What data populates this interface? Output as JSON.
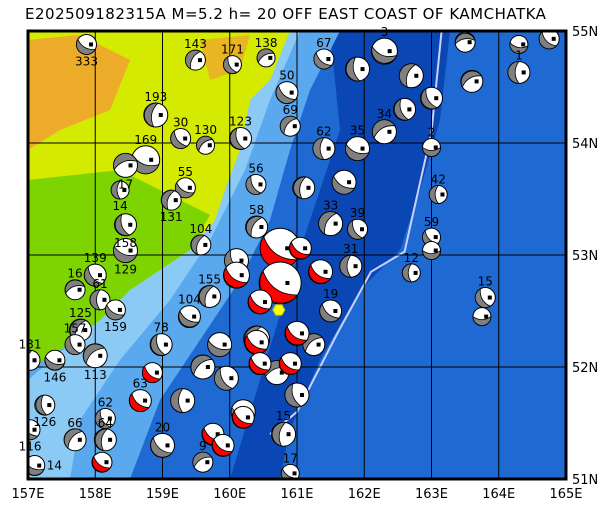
{
  "title": "E202509182315A M=5.2 h= 20 OFF EAST COAST OF KAMCHATKA",
  "map": {
    "lon_range": [
      157,
      165
    ],
    "lat_range": [
      51,
      55
    ],
    "lon_ticks": [
      "157E",
      "158E",
      "159E",
      "160E",
      "161E",
      "162E",
      "163E",
      "164E",
      "165E"
    ],
    "lat_ticks": [
      "51N",
      "52N",
      "53N",
      "54N",
      "55N"
    ],
    "colors": {
      "deep_ocean": "#0a46b4",
      "ocean": "#1e6ad2",
      "shelf": "#5aa8ee",
      "shallow": "#8ccaf6",
      "lowland": "#7ed400",
      "land": "#d4ea00",
      "highland": "#f0a030",
      "trench": "#c8d0ff",
      "compression": "#808080",
      "compression_main": "#ff0000",
      "epicenter": "#ffff00"
    },
    "epicenter": {
      "lon": 160.73,
      "lat": 52.51
    },
    "trench": [
      [
        163.15,
        55
      ],
      [
        163.0,
        54.1
      ],
      [
        162.7,
        53.3
      ],
      [
        162.6,
        53.03
      ],
      [
        162.1,
        52.85
      ],
      [
        161.6,
        52.3
      ],
      [
        161.0,
        51.6
      ],
      [
        160.6,
        51.4
      ]
    ],
    "events": [
      {
        "lon": 157.87,
        "lat": 54.88,
        "label": "333",
        "r": 10,
        "rot": 30,
        "c": "g"
      },
      {
        "lon": 159.49,
        "lat": 54.74,
        "label": "143",
        "r": 10,
        "rot": 120,
        "c": "g"
      },
      {
        "lon": 160.04,
        "lat": 54.7,
        "label": "171",
        "r": 9,
        "rot": 60,
        "c": "g"
      },
      {
        "lon": 160.54,
        "lat": 54.76,
        "label": "138",
        "r": 9,
        "rot": 150,
        "c": "g"
      },
      {
        "lon": 161.4,
        "lat": 54.75,
        "label": "67",
        "r": 10,
        "rot": 40,
        "c": "g"
      },
      {
        "lon": 161.9,
        "lat": 54.66,
        "label": "",
        "r": 12,
        "rot": 80,
        "c": "g"
      },
      {
        "lon": 162.3,
        "lat": 54.82,
        "label": "3",
        "r": 13,
        "rot": 20,
        "c": "g"
      },
      {
        "lon": 162.7,
        "lat": 54.6,
        "label": "",
        "r": 12,
        "rot": 110,
        "c": "g"
      },
      {
        "lon": 163.0,
        "lat": 54.4,
        "label": "",
        "r": 11,
        "rot": 60,
        "c": "g"
      },
      {
        "lon": 163.6,
        "lat": 54.55,
        "label": "",
        "r": 11,
        "rot": 150,
        "c": "g"
      },
      {
        "lon": 164.3,
        "lat": 54.63,
        "label": "1",
        "r": 11,
        "rot": 90,
        "c": "g"
      },
      {
        "lon": 164.3,
        "lat": 54.88,
        "label": "",
        "r": 9,
        "rot": 10,
        "c": "g"
      },
      {
        "lon": 164.75,
        "lat": 54.93,
        "label": "",
        "r": 10,
        "rot": 45,
        "c": "g"
      },
      {
        "lon": 163.5,
        "lat": 54.9,
        "label": "",
        "r": 10,
        "rot": 170,
        "c": "g"
      },
      {
        "lon": 158.9,
        "lat": 54.25,
        "label": "193",
        "r": 12,
        "rot": 100,
        "c": "g"
      },
      {
        "lon": 159.27,
        "lat": 54.04,
        "label": "30",
        "r": 10,
        "rot": 50,
        "c": "g"
      },
      {
        "lon": 159.64,
        "lat": 53.98,
        "label": "130",
        "r": 9,
        "rot": 140,
        "c": "g"
      },
      {
        "lon": 160.16,
        "lat": 54.04,
        "label": "123",
        "r": 11,
        "rot": 70,
        "c": "g"
      },
      {
        "lon": 158.75,
        "lat": 53.85,
        "label": "169",
        "r": 14,
        "rot": 20,
        "c": "g"
      },
      {
        "lon": 158.45,
        "lat": 53.8,
        "label": "17",
        "r": 12,
        "rot": 160,
        "c": "g"
      },
      {
        "lon": 158.37,
        "lat": 53.58,
        "label": "14",
        "r": 9,
        "rot": 90,
        "c": "g"
      },
      {
        "lon": 159.34,
        "lat": 53.6,
        "label": "55",
        "r": 10,
        "rot": 30,
        "c": "g"
      },
      {
        "lon": 159.13,
        "lat": 53.49,
        "label": "131",
        "r": 10,
        "rot": 110,
        "c": "g"
      },
      {
        "lon": 160.39,
        "lat": 53.63,
        "label": "56",
        "r": 10,
        "rot": 60,
        "c": "g"
      },
      {
        "lon": 160.9,
        "lat": 54.15,
        "label": "69",
        "r": 10,
        "rot": 130,
        "c": "g"
      },
      {
        "lon": 160.85,
        "lat": 54.45,
        "label": "50",
        "r": 11,
        "rot": 40,
        "c": "g"
      },
      {
        "lon": 161.4,
        "lat": 53.95,
        "label": "62",
        "r": 11,
        "rot": 90,
        "c": "g"
      },
      {
        "lon": 161.9,
        "lat": 53.95,
        "label": "35",
        "r": 12,
        "rot": 20,
        "c": "g"
      },
      {
        "lon": 162.3,
        "lat": 54.1,
        "label": "34",
        "r": 12,
        "rot": 150,
        "c": "g"
      },
      {
        "lon": 162.6,
        "lat": 54.3,
        "label": "",
        "r": 11,
        "rot": 70,
        "c": "g"
      },
      {
        "lon": 163.0,
        "lat": 53.96,
        "label": "2",
        "r": 9,
        "rot": 0,
        "c": "g"
      },
      {
        "lon": 163.1,
        "lat": 53.54,
        "label": "42",
        "r": 9,
        "rot": 90,
        "c": "g"
      },
      {
        "lon": 163.0,
        "lat": 53.16,
        "label": "59",
        "r": 9,
        "rot": 45,
        "c": "g"
      },
      {
        "lon": 163.0,
        "lat": 53.04,
        "label": "",
        "r": 9,
        "rot": 0,
        "c": "g"
      },
      {
        "lon": 162.7,
        "lat": 52.84,
        "label": "12",
        "r": 9,
        "rot": 90,
        "c": "g"
      },
      {
        "lon": 163.8,
        "lat": 52.62,
        "label": "15",
        "r": 10,
        "rot": 60,
        "c": "g"
      },
      {
        "lon": 163.75,
        "lat": 52.45,
        "label": "",
        "r": 9,
        "rot": 0,
        "c": "g"
      },
      {
        "lon": 161.1,
        "lat": 53.6,
        "label": "",
        "r": 11,
        "rot": 100,
        "c": "g"
      },
      {
        "lon": 161.7,
        "lat": 53.65,
        "label": "",
        "r": 12,
        "rot": 30,
        "c": "g"
      },
      {
        "lon": 161.5,
        "lat": 53.28,
        "label": "33",
        "r": 12,
        "rot": 120,
        "c": "g"
      },
      {
        "lon": 161.9,
        "lat": 53.23,
        "label": "39",
        "r": 10,
        "rot": 60,
        "c": "g"
      },
      {
        "lon": 161.8,
        "lat": 52.9,
        "label": "31",
        "r": 11,
        "rot": 90,
        "c": "g"
      },
      {
        "lon": 161.5,
        "lat": 52.5,
        "label": "19",
        "r": 11,
        "rot": 40,
        "c": "g"
      },
      {
        "lon": 161.25,
        "lat": 52.2,
        "label": "",
        "r": 11,
        "rot": 140,
        "c": "g"
      },
      {
        "lon": 158.45,
        "lat": 53.27,
        "label": "158",
        "r": 11,
        "rot": 70,
        "c": "g"
      },
      {
        "lon": 158.45,
        "lat": 53.04,
        "label": "129",
        "r": 12,
        "rot": 20,
        "c": "g"
      },
      {
        "lon": 159.57,
        "lat": 53.09,
        "label": "104",
        "r": 10,
        "rot": 110,
        "c": "g"
      },
      {
        "lon": 158.0,
        "lat": 52.82,
        "label": "139",
        "r": 11,
        "rot": 50,
        "c": "g"
      },
      {
        "lon": 157.7,
        "lat": 52.69,
        "label": "16",
        "r": 10,
        "rot": 160,
        "c": "g"
      },
      {
        "lon": 158.07,
        "lat": 52.6,
        "label": "61",
        "r": 10,
        "rot": 90,
        "c": "g"
      },
      {
        "lon": 158.3,
        "lat": 52.51,
        "label": "159",
        "r": 10,
        "rot": 30,
        "c": "g"
      },
      {
        "lon": 157.78,
        "lat": 52.33,
        "label": "125",
        "r": 11,
        "rot": 120,
        "c": "g"
      },
      {
        "lon": 157.7,
        "lat": 52.2,
        "label": "157",
        "r": 10,
        "rot": 60,
        "c": "g"
      },
      {
        "lon": 157.03,
        "lat": 52.06,
        "label": "131",
        "r": 10,
        "rot": 100,
        "c": "g"
      },
      {
        "lon": 157.4,
        "lat": 52.06,
        "label": "146",
        "r": 10,
        "rot": 20,
        "c": "g"
      },
      {
        "lon": 158.0,
        "lat": 52.1,
        "label": "113",
        "r": 12,
        "rot": 140,
        "c": "g"
      },
      {
        "lon": 157.25,
        "lat": 51.66,
        "label": "126",
        "r": 10,
        "rot": 80,
        "c": "g"
      },
      {
        "lon": 157.03,
        "lat": 51.44,
        "label": "116",
        "r": 10,
        "rot": 40,
        "c": "g"
      },
      {
        "lon": 157.7,
        "lat": 51.35,
        "label": "66",
        "r": 11,
        "rot": 130,
        "c": "g"
      },
      {
        "lon": 158.15,
        "lat": 51.54,
        "label": "62",
        "r": 10,
        "rot": 60,
        "c": "g"
      },
      {
        "lon": 158.15,
        "lat": 51.35,
        "label": "64",
        "r": 11,
        "rot": 100,
        "c": "g"
      },
      {
        "lon": 157.1,
        "lat": 51.12,
        "label": "14",
        "r": 10,
        "rot": 20,
        "c": "g"
      },
      {
        "lon": 159.6,
        "lat": 51.15,
        "label": "9",
        "r": 10,
        "rot": 150,
        "c": "g"
      },
      {
        "lon": 158.98,
        "lat": 52.2,
        "label": "78",
        "r": 11,
        "rot": 70,
        "c": "g"
      },
      {
        "lon": 159.4,
        "lat": 52.45,
        "label": "104",
        "r": 11,
        "rot": 30,
        "c": "g"
      },
      {
        "lon": 159.7,
        "lat": 52.63,
        "label": "155",
        "r": 11,
        "rot": 110,
        "c": "g"
      },
      {
        "lon": 159.95,
        "lat": 51.9,
        "label": "",
        "r": 12,
        "rot": 60,
        "c": "g"
      },
      {
        "lon": 159.6,
        "lat": 52.0,
        "label": "",
        "r": 12,
        "rot": 140,
        "c": "g"
      },
      {
        "lon": 159.85,
        "lat": 52.2,
        "label": "",
        "r": 12,
        "rot": 20,
        "c": "g"
      },
      {
        "lon": 159.3,
        "lat": 51.7,
        "label": "",
        "r": 12,
        "rot": 90,
        "c": "g"
      },
      {
        "lon": 159.0,
        "lat": 51.3,
        "label": "20",
        "r": 12,
        "rot": 40,
        "c": "g"
      },
      {
        "lon": 160.4,
        "lat": 53.25,
        "label": "58",
        "r": 11,
        "rot": 120,
        "c": "g"
      },
      {
        "lon": 160.1,
        "lat": 52.95,
        "label": "",
        "r": 12,
        "rot": 60,
        "c": "g"
      },
      {
        "lon": 160.8,
        "lat": 51.4,
        "label": "15",
        "r": 12,
        "rot": 100,
        "c": "g"
      },
      {
        "lon": 160.9,
        "lat": 51.05,
        "label": "17",
        "r": 9,
        "rot": 30,
        "c": "g"
      },
      {
        "lon": 160.7,
        "lat": 51.95,
        "label": "",
        "r": 12,
        "rot": 160,
        "c": "g"
      },
      {
        "lon": 161.0,
        "lat": 51.75,
        "label": "",
        "r": 12,
        "rot": 70,
        "c": "g"
      },
      {
        "lon": 160.2,
        "lat": 51.6,
        "label": "",
        "r": 12,
        "rot": 20,
        "c": "g"
      },
      {
        "lon": 160.4,
        "lat": 52.25,
        "label": "",
        "r": 13,
        "rot": 110,
        "c": "g"
      },
      {
        "lon": 158.67,
        "lat": 51.7,
        "label": "63",
        "r": 11,
        "rot": 40,
        "c": "r"
      },
      {
        "lon": 158.85,
        "lat": 51.95,
        "label": "",
        "r": 10,
        "rot": 40,
        "c": "r"
      },
      {
        "lon": 160.75,
        "lat": 53.06,
        "label": "",
        "r": 20,
        "rot": 35,
        "c": "r"
      },
      {
        "lon": 160.75,
        "lat": 52.75,
        "label": "",
        "r": 21,
        "rot": 35,
        "c": "r"
      },
      {
        "lon": 160.1,
        "lat": 52.82,
        "label": "",
        "r": 13,
        "rot": 35,
        "c": "r"
      },
      {
        "lon": 161.05,
        "lat": 53.06,
        "label": "",
        "r": 11,
        "rot": 35,
        "c": "r"
      },
      {
        "lon": 161.35,
        "lat": 52.85,
        "label": "",
        "r": 12,
        "rot": 35,
        "c": "r"
      },
      {
        "lon": 160.45,
        "lat": 52.58,
        "label": "",
        "r": 12,
        "rot": 35,
        "c": "r"
      },
      {
        "lon": 160.4,
        "lat": 52.22,
        "label": "",
        "r": 12,
        "rot": 35,
        "c": "r"
      },
      {
        "lon": 161.0,
        "lat": 52.3,
        "label": "",
        "r": 12,
        "rot": 35,
        "c": "r"
      },
      {
        "lon": 160.9,
        "lat": 52.03,
        "label": "",
        "r": 11,
        "rot": 35,
        "c": "r"
      },
      {
        "lon": 160.45,
        "lat": 52.03,
        "label": "",
        "r": 11,
        "rot": 35,
        "c": "r"
      },
      {
        "lon": 159.75,
        "lat": 51.4,
        "label": "",
        "r": 11,
        "rot": 35,
        "c": "r"
      },
      {
        "lon": 160.2,
        "lat": 51.55,
        "label": "",
        "r": 11,
        "rot": 35,
        "c": "r"
      },
      {
        "lon": 159.9,
        "lat": 51.3,
        "label": "",
        "r": 11,
        "rot": 35,
        "c": "r"
      },
      {
        "lon": 158.1,
        "lat": 51.15,
        "label": "",
        "r": 10,
        "rot": 35,
        "c": "r"
      }
    ]
  }
}
